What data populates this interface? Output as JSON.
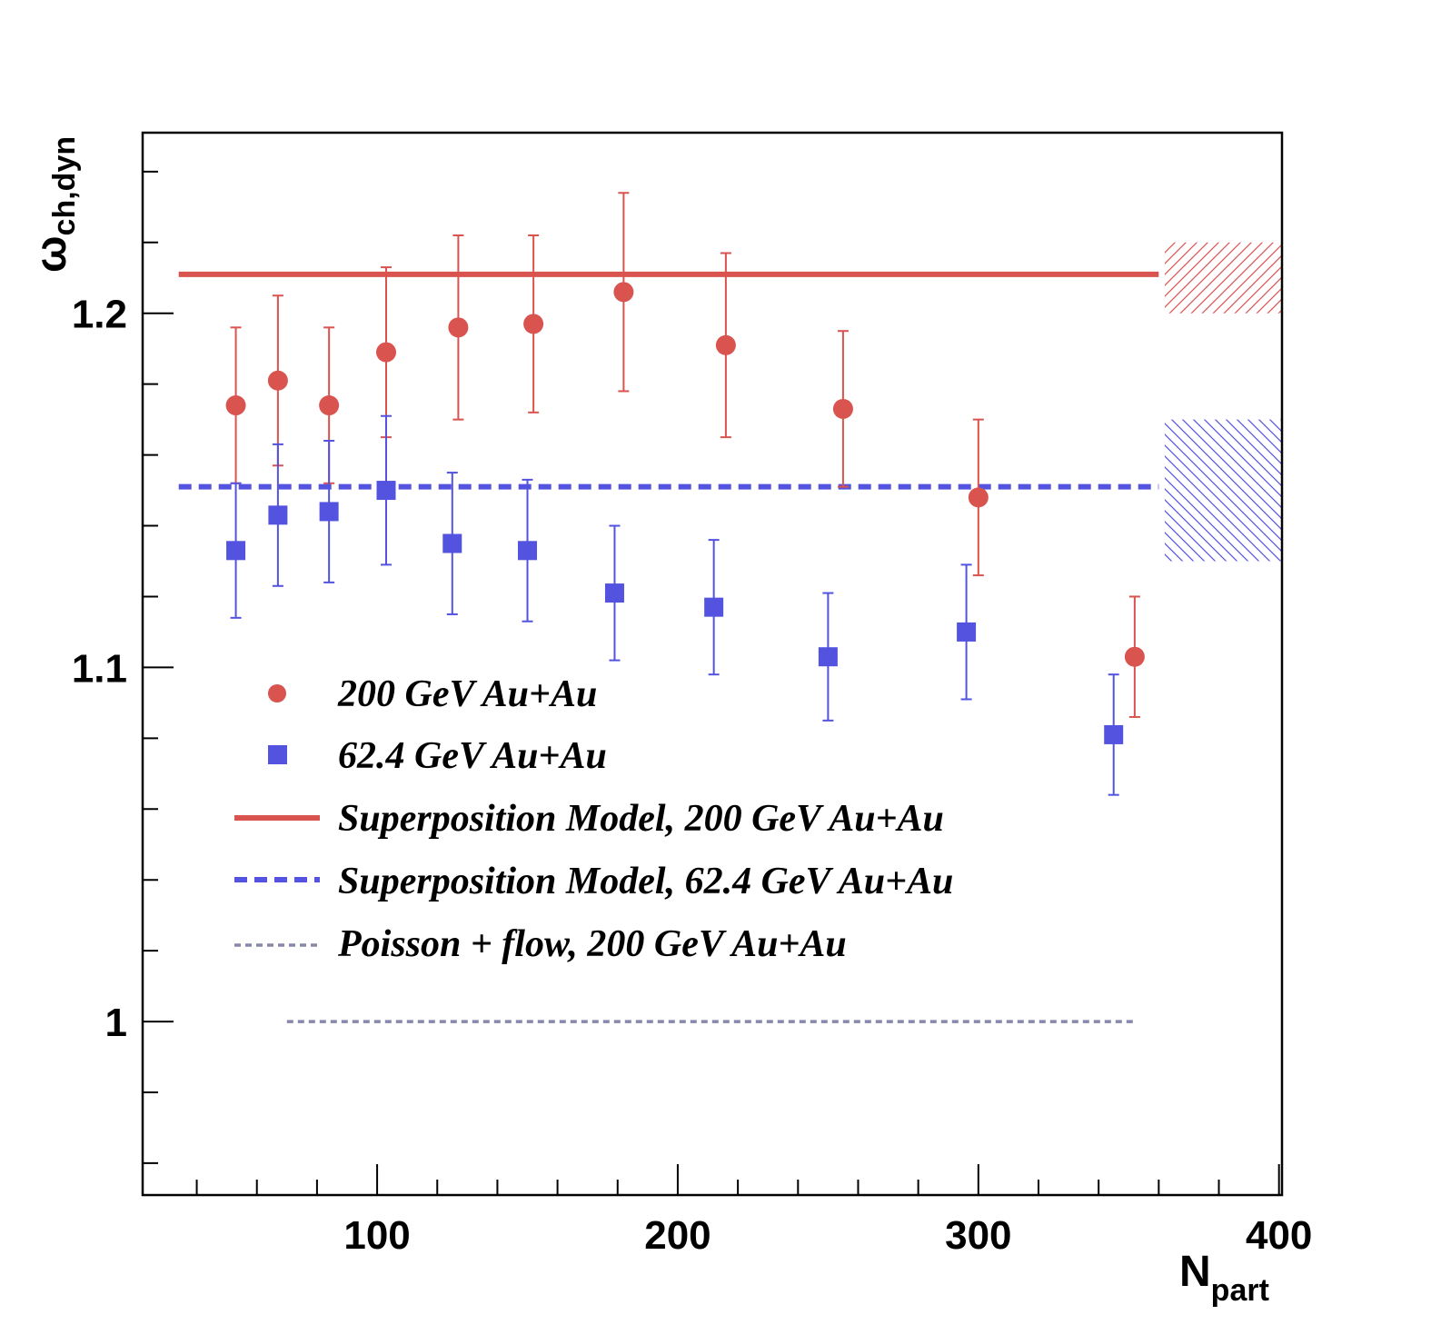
{
  "chart_data": {
    "type": "scatter",
    "xlabel": {
      "main": "N",
      "sub": "part"
    },
    "ylabel": {
      "main": "ω",
      "sub": "ch,dyn"
    },
    "xlim": [
      22,
      401
    ],
    "ylim": [
      0.951,
      1.251
    ],
    "x_ticks": [
      100,
      200,
      300,
      400
    ],
    "x_tick_labels": [
      "100",
      "200",
      "300",
      "400"
    ],
    "y_ticks": [
      1.0,
      1.1,
      1.2
    ],
    "y_tick_labels": [
      "1",
      "1.1",
      "1.2"
    ],
    "grid": false,
    "legend_position": "lower-left",
    "series": [
      {
        "name": "200 GeV Au+Au",
        "marker": "circle",
        "color": "#d9534f",
        "points": [
          {
            "x": 53,
            "y": 1.174,
            "err": 0.022
          },
          {
            "x": 67,
            "y": 1.181,
            "err": 0.024
          },
          {
            "x": 84,
            "y": 1.174,
            "err": 0.022
          },
          {
            "x": 103,
            "y": 1.189,
            "err": 0.024
          },
          {
            "x": 127,
            "y": 1.196,
            "err": 0.026
          },
          {
            "x": 152,
            "y": 1.197,
            "err": 0.025
          },
          {
            "x": 182,
            "y": 1.206,
            "err": 0.028
          },
          {
            "x": 216,
            "y": 1.191,
            "err": 0.026
          },
          {
            "x": 255,
            "y": 1.173,
            "err": 0.022
          },
          {
            "x": 300,
            "y": 1.148,
            "err": 0.022
          },
          {
            "x": 352,
            "y": 1.103,
            "err": 0.017
          }
        ]
      },
      {
        "name": "62.4 GeV Au+Au",
        "marker": "square",
        "color": "#5353e0",
        "points": [
          {
            "x": 53,
            "y": 1.133,
            "err": 0.019
          },
          {
            "x": 67,
            "y": 1.143,
            "err": 0.02
          },
          {
            "x": 84,
            "y": 1.144,
            "err": 0.02
          },
          {
            "x": 103,
            "y": 1.15,
            "err": 0.021
          },
          {
            "x": 125,
            "y": 1.135,
            "err": 0.02
          },
          {
            "x": 150,
            "y": 1.133,
            "err": 0.02
          },
          {
            "x": 179,
            "y": 1.121,
            "err": 0.019
          },
          {
            "x": 212,
            "y": 1.117,
            "err": 0.019
          },
          {
            "x": 250,
            "y": 1.103,
            "err": 0.018
          },
          {
            "x": 296,
            "y": 1.11,
            "err": 0.019
          },
          {
            "x": 345,
            "y": 1.081,
            "err": 0.017
          }
        ]
      },
      {
        "name": "Superposition Model, 200 GeV Au+Au",
        "style": "solid",
        "color": "#d9534f",
        "x": [
          34,
          360
        ],
        "y": [
          1.211,
          1.211
        ]
      },
      {
        "name": "Superposition Model, 62.4 GeV Au+Au",
        "style": "dashed",
        "color": "#5353e0",
        "x": [
          34,
          360
        ],
        "y": [
          1.151,
          1.151
        ]
      },
      {
        "name": "Poisson + flow, 200 GeV Au+Au",
        "style": "dotted",
        "color": "#8888aa",
        "x": [
          70,
          352
        ],
        "y": [
          1.0,
          1.0
        ]
      }
    ],
    "bands": [
      {
        "color": "#d9534f",
        "hatch": "diagonal-up",
        "x": [
          362,
          401
        ],
        "y": [
          1.2,
          1.22
        ]
      },
      {
        "color": "#5353e0",
        "hatch": "diagonal-down",
        "x": [
          362,
          401
        ],
        "y": [
          1.13,
          1.17
        ]
      }
    ]
  }
}
